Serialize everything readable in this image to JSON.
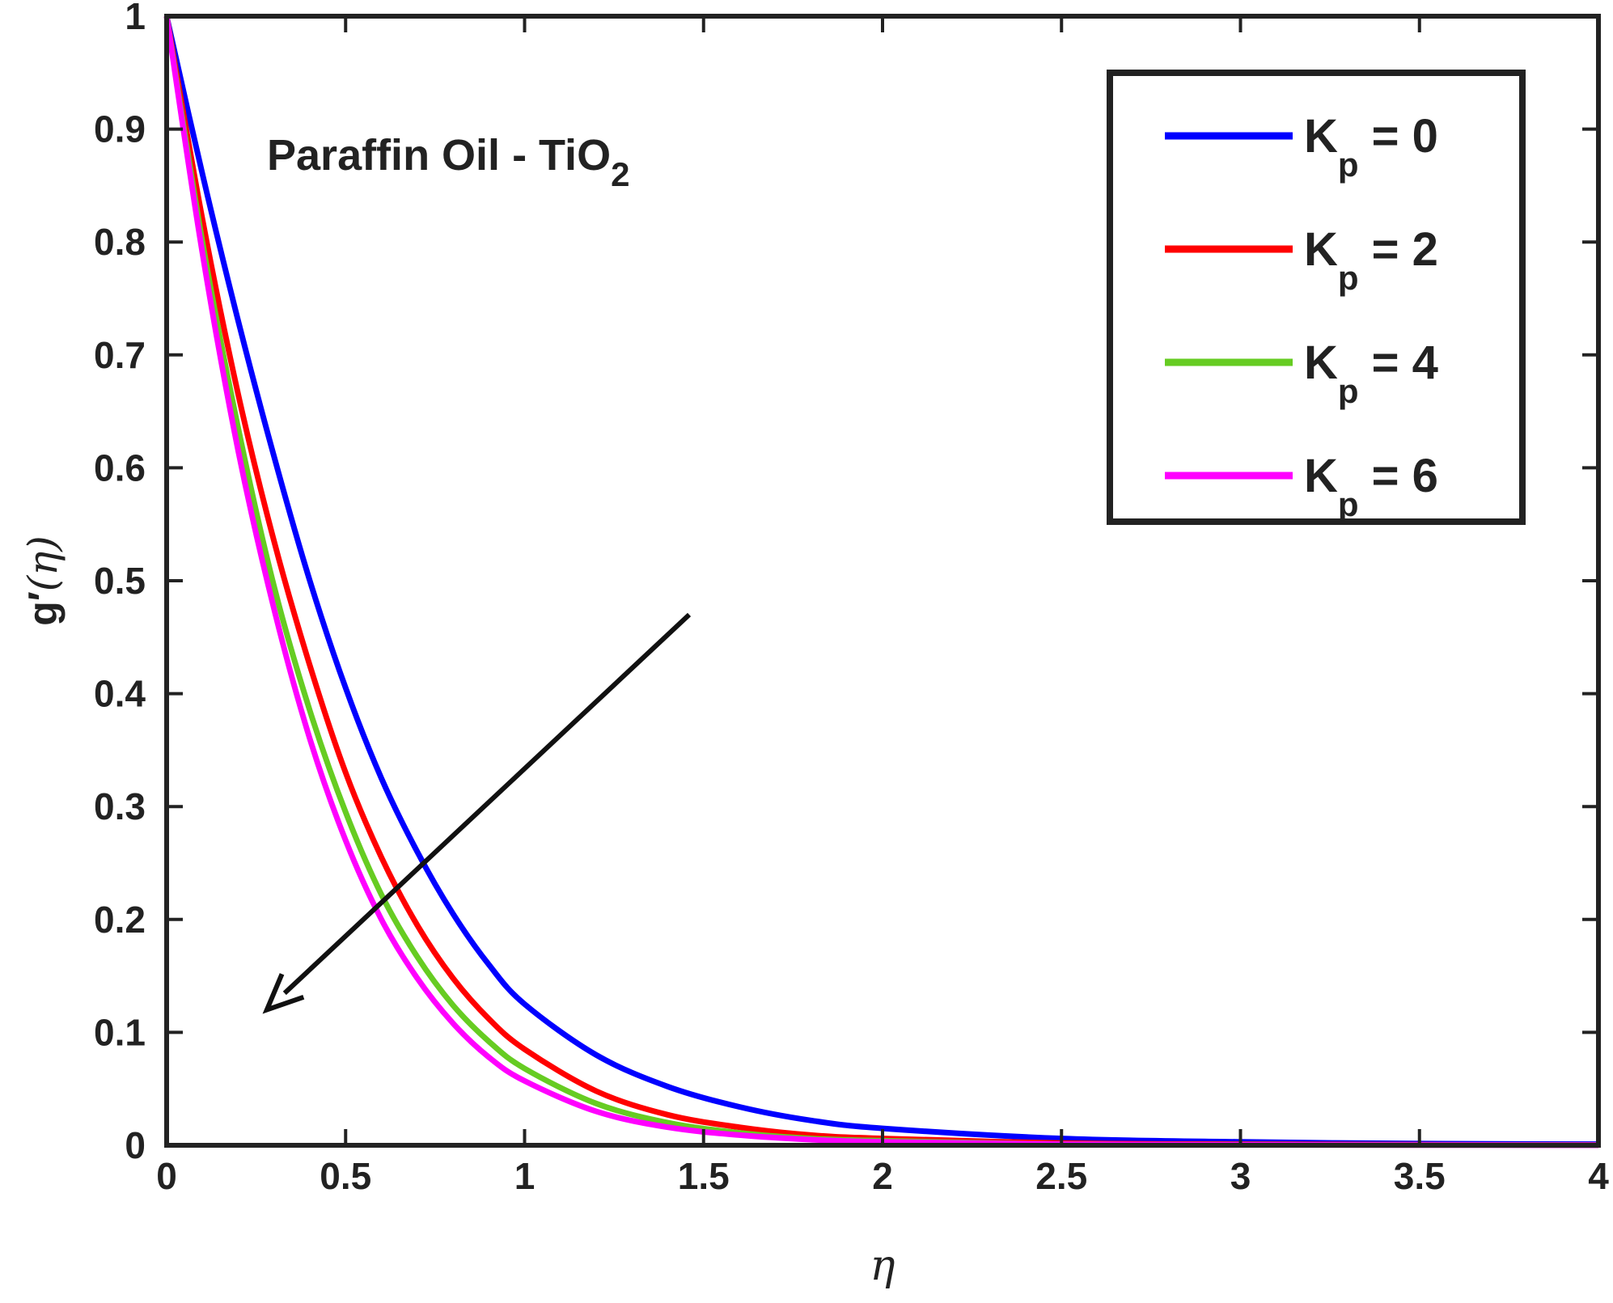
{
  "chart_data": {
    "type": "line",
    "title": "",
    "xlabel": "η",
    "ylabel": {
      "main": "g",
      "prime": "′",
      "open": "(",
      "arg": "η",
      "close": ")"
    },
    "xlim": [
      0,
      4
    ],
    "ylim": [
      0,
      1
    ],
    "x_ticks": [
      "0",
      "0.5",
      "1",
      "1.5",
      "2",
      "2.5",
      "3",
      "3.5",
      "4"
    ],
    "y_ticks": [
      "0",
      "0.1",
      "0.2",
      "0.3",
      "0.4",
      "0.5",
      "0.6",
      "0.7",
      "0.8",
      "0.9",
      "1"
    ],
    "grid": false,
    "legend_position": "top-right",
    "annotation": {
      "text": "Paraffin Oil - TiO",
      "subscript": "2"
    },
    "arrow": {
      "from": [
        1.46,
        0.47
      ],
      "to": [
        0.28,
        0.12
      ]
    },
    "series": [
      {
        "name": "K",
        "name_sub": "p",
        "name_value": " = 0",
        "color": "#0000ff",
        "x": [
          0,
          0.1,
          0.2,
          0.3,
          0.4,
          0.5,
          0.6,
          0.7,
          0.8,
          0.9,
          1.0,
          1.2,
          1.4,
          1.6,
          1.8,
          2.0,
          2.5,
          3.0,
          3.5,
          4.0
        ],
        "y": [
          1.0,
          0.86,
          0.73,
          0.61,
          0.5,
          0.405,
          0.325,
          0.26,
          0.205,
          0.16,
          0.125,
          0.08,
          0.052,
          0.034,
          0.022,
          0.015,
          0.006,
          0.003,
          0.0015,
          0.001
        ]
      },
      {
        "name": "K",
        "name_sub": "p",
        "name_value": " = 2",
        "color": "#ff0000",
        "x": [
          0,
          0.1,
          0.2,
          0.3,
          0.4,
          0.5,
          0.6,
          0.7,
          0.8,
          0.9,
          1.0,
          1.2,
          1.4,
          1.6,
          1.8,
          2.0,
          2.5,
          3.0,
          3.5,
          4.0
        ],
        "y": [
          1.0,
          0.82,
          0.665,
          0.535,
          0.425,
          0.33,
          0.255,
          0.195,
          0.148,
          0.112,
          0.085,
          0.048,
          0.027,
          0.016,
          0.009,
          0.006,
          0.002,
          0.001,
          0.0005,
          0.0003
        ]
      },
      {
        "name": "K",
        "name_sub": "p",
        "name_value": " = 4",
        "color": "#66cc22",
        "x": [
          0,
          0.1,
          0.2,
          0.3,
          0.4,
          0.5,
          0.6,
          0.7,
          0.8,
          0.9,
          1.0,
          1.2,
          1.4,
          1.6,
          1.8,
          2.0,
          2.5,
          3.0,
          3.5,
          4.0
        ],
        "y": [
          1.0,
          0.8,
          0.635,
          0.495,
          0.385,
          0.295,
          0.222,
          0.167,
          0.124,
          0.092,
          0.068,
          0.037,
          0.02,
          0.011,
          0.006,
          0.004,
          0.001,
          0.0005,
          0.0003,
          0.0002
        ]
      },
      {
        "name": "K",
        "name_sub": "p",
        "name_value": " = 6",
        "color": "#ff00ff",
        "x": [
          0,
          0.1,
          0.2,
          0.3,
          0.4,
          0.5,
          0.6,
          0.7,
          0.8,
          0.9,
          1.0,
          1.2,
          1.4,
          1.6,
          1.8,
          2.0,
          2.5,
          3.0,
          3.5,
          4.0
        ],
        "y": [
          1.0,
          0.79,
          0.615,
          0.475,
          0.36,
          0.27,
          0.2,
          0.148,
          0.108,
          0.078,
          0.057,
          0.03,
          0.016,
          0.009,
          0.005,
          0.003,
          0.001,
          0.0004,
          0.0002,
          0.0001
        ]
      }
    ]
  }
}
